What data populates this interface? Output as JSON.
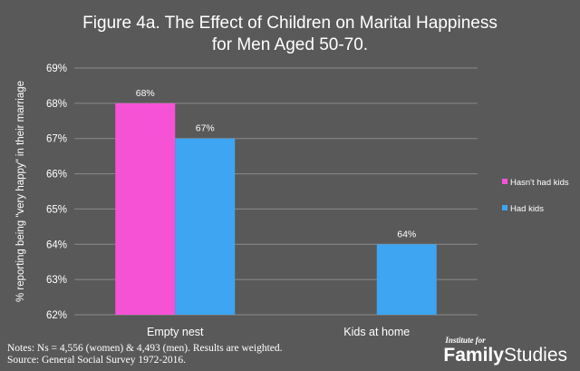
{
  "chart_data": {
    "type": "bar",
    "title_line1": "Figure 4a. The Effect of Children on Marital Happiness",
    "title_line2": "for Men Aged 50-70.",
    "ylabel": "% reporting  being \"very happy\" in their marriage",
    "xlabel": "",
    "ylim": [
      62,
      69
    ],
    "yticks": [
      "62%",
      "63%",
      "64%",
      "65%",
      "66%",
      "67%",
      "68%",
      "69%"
    ],
    "categories": [
      "Empty nest",
      "Kids at home"
    ],
    "series": [
      {
        "name": "Hasn't had kids",
        "color": "#f652d6",
        "values": [
          68,
          null
        ],
        "labels": [
          "68%",
          ""
        ]
      },
      {
        "name": "Had kids",
        "color": "#3da5f2",
        "values": [
          67,
          64
        ],
        "labels": [
          "67%",
          "64%"
        ]
      }
    ],
    "legend": "right",
    "grid": true
  },
  "notes": {
    "line1": "Notes: Ns = 4,556 (women) & 4,493 (men). Results are weighted.",
    "line2": "Source: General Social Survey 1972-2016."
  },
  "logo": {
    "top": "Institute for",
    "family": "Family",
    "studies": "Studies"
  }
}
